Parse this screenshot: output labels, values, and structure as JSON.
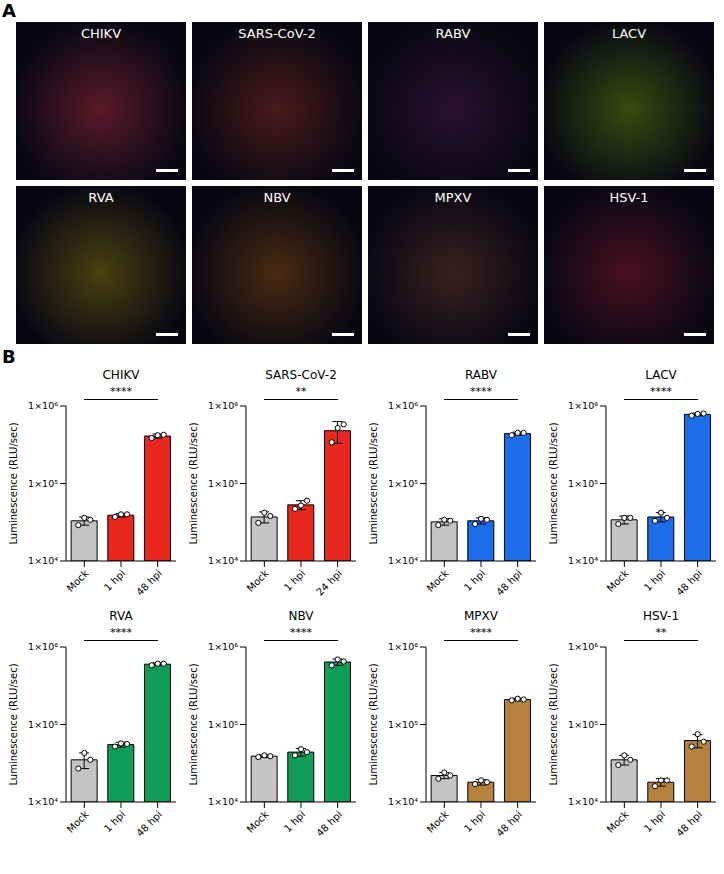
{
  "panel_a": {
    "letter": "A",
    "images": [
      {
        "label": "CHIKV"
      },
      {
        "label": "SARS-CoV-2"
      },
      {
        "label": "RABV"
      },
      {
        "label": "LACV"
      },
      {
        "label": "RVA"
      },
      {
        "label": "NBV"
      },
      {
        "label": "MPXV"
      },
      {
        "label": "HSV-1"
      }
    ]
  },
  "panel_b": {
    "letter": "B"
  },
  "chart_data": [
    {
      "type": "bar",
      "title": "CHIKV",
      "y_label": "Luminescence (RLU/sec)",
      "categories": [
        "Mock",
        "1 hpi",
        "48 hpi"
      ],
      "values": [
        33000,
        39000,
        410000
      ],
      "errors": [
        4000,
        2000,
        25000
      ],
      "points": [
        [
          29000,
          36000,
          34000
        ],
        [
          37000,
          40000,
          40000
        ],
        [
          385000,
          420000,
          425000
        ]
      ],
      "colors": [
        "#c4c4c4",
        "#e8281f",
        "#e8281f"
      ],
      "ylim": [
        10000,
        1000000
      ],
      "yticks": [
        {
          "value": 10000,
          "label": "1×10⁴"
        },
        {
          "value": 100000,
          "label": "1×10⁵"
        },
        {
          "value": 1000000,
          "label": "1×10⁶"
        }
      ],
      "log": "y",
      "annotation": "****"
    },
    {
      "type": "bar",
      "title": "SARS-CoV-2",
      "y_label": "Luminescence (RLU/sec)",
      "categories": [
        "Mock",
        "1 hpi",
        "24 hpi"
      ],
      "values": [
        37000,
        53000,
        480000
      ],
      "errors": [
        6000,
        7000,
        150000
      ],
      "points": [
        [
          31000,
          42000,
          38000
        ],
        [
          47000,
          52000,
          60000
        ],
        [
          340000,
          520000,
          580000
        ]
      ],
      "colors": [
        "#c4c4c4",
        "#e8281f",
        "#e8281f"
      ],
      "ylim": [
        10000,
        1000000
      ],
      "yticks": [
        {
          "value": 10000,
          "label": "1×10⁴"
        },
        {
          "value": 100000,
          "label": "1×10⁵"
        },
        {
          "value": 1000000,
          "label": "1×10⁶"
        }
      ],
      "log": "y",
      "annotation": "**"
    },
    {
      "type": "bar",
      "title": "RABV",
      "y_label": "Luminescence (RLU/sec)",
      "categories": [
        "Mock",
        "1 hpi",
        "48 hpi"
      ],
      "values": [
        32000,
        33000,
        440000
      ],
      "errors": [
        3000,
        3000,
        20000
      ],
      "points": [
        [
          29000,
          34000,
          33000
        ],
        [
          30000,
          35000,
          34000
        ],
        [
          420000,
          450000,
          450000
        ]
      ],
      "colors": [
        "#c4c4c4",
        "#1c6ee8",
        "#1c6ee8"
      ],
      "ylim": [
        10000,
        1000000
      ],
      "yticks": [
        {
          "value": 10000,
          "label": "1×10⁴"
        },
        {
          "value": 100000,
          "label": "1×10⁵"
        },
        {
          "value": 1000000,
          "label": "1×10⁶"
        }
      ],
      "log": "y",
      "annotation": "****"
    },
    {
      "type": "bar",
      "title": "LACV",
      "y_label": "Luminescence (RLU/sec)",
      "categories": [
        "Mock",
        "1 hpi",
        "48 hpi"
      ],
      "values": [
        34000,
        37000,
        780000
      ],
      "errors": [
        4000,
        5000,
        30000
      ],
      "points": [
        [
          30000,
          36000,
          36000
        ],
        [
          33000,
          42000,
          36000
        ],
        [
          750000,
          790000,
          800000
        ]
      ],
      "colors": [
        "#c4c4c4",
        "#1c6ee8",
        "#1c6ee8"
      ],
      "ylim": [
        10000,
        1000000
      ],
      "yticks": [
        {
          "value": 10000,
          "label": "1×10⁴"
        },
        {
          "value": 100000,
          "label": "1×10⁵"
        },
        {
          "value": 1000000,
          "label": "1×10⁶"
        }
      ],
      "log": "y",
      "annotation": "****"
    },
    {
      "type": "bar",
      "title": "RVA",
      "y_label": "Luminescence (RLU/sec)",
      "categories": [
        "Mock",
        "1 hpi",
        "48 hpi"
      ],
      "values": [
        35000,
        55000,
        600000
      ],
      "errors": [
        8000,
        4000,
        25000
      ],
      "points": [
        [
          27000,
          43000,
          35000
        ],
        [
          52000,
          57000,
          56000
        ],
        [
          580000,
          610000,
          610000
        ]
      ],
      "colors": [
        "#c4c4c4",
        "#0f9d58",
        "#0f9d58"
      ],
      "ylim": [
        10000,
        1000000
      ],
      "yticks": [
        {
          "value": 10000,
          "label": "1×10⁴"
        },
        {
          "value": 100000,
          "label": "1×10⁵"
        },
        {
          "value": 1000000,
          "label": "1×10⁶"
        }
      ],
      "log": "y",
      "annotation": "****"
    },
    {
      "type": "bar",
      "title": "NBV",
      "y_label": "Luminescence (RLU/sec)",
      "categories": [
        "Mock",
        "1 hpi",
        "48 hpi"
      ],
      "values": [
        39000,
        44000,
        640000
      ],
      "errors": [
        1500,
        5000,
        60000
      ],
      "points": [
        [
          38000,
          40000,
          39000
        ],
        [
          40000,
          48000,
          44000
        ],
        [
          580000,
          690000,
          650000
        ]
      ],
      "colors": [
        "#c4c4c4",
        "#0f9d58",
        "#0f9d58"
      ],
      "ylim": [
        10000,
        1000000
      ],
      "yticks": [
        {
          "value": 10000,
          "label": "1×10⁴"
        },
        {
          "value": 100000,
          "label": "1×10⁵"
        },
        {
          "value": 1000000,
          "label": "1×10⁶"
        }
      ],
      "log": "y",
      "annotation": "****"
    },
    {
      "type": "bar",
      "title": "MPXV",
      "y_label": "Luminescence (RLU/sec)",
      "categories": [
        "Mock",
        "1 hpi",
        "48 hpi"
      ],
      "values": [
        22000,
        18000,
        210000
      ],
      "errors": [
        2000,
        1500,
        8000
      ],
      "points": [
        [
          20000,
          24000,
          22000
        ],
        [
          17000,
          19000,
          18000
        ],
        [
          205000,
          215000,
          210000
        ]
      ],
      "colors": [
        "#c4c4c4",
        "#b5813f",
        "#b5813f"
      ],
      "ylim": [
        10000,
        1000000
      ],
      "yticks": [
        {
          "value": 10000,
          "label": "1×10⁴"
        },
        {
          "value": 100000,
          "label": "1×10⁵"
        },
        {
          "value": 1000000,
          "label": "1×10⁶"
        }
      ],
      "log": "y",
      "annotation": "****"
    },
    {
      "type": "bar",
      "title": "HSV-1",
      "y_label": "Luminescence (RLU/sec)",
      "categories": [
        "Mock",
        "1 hpi",
        "48 hpi"
      ],
      "values": [
        35000,
        18000,
        62000
      ],
      "errors": [
        5000,
        2000,
        12000
      ],
      "points": [
        [
          30000,
          40000,
          35000
        ],
        [
          16000,
          19000,
          19000
        ],
        [
          52000,
          75000,
          60000
        ]
      ],
      "colors": [
        "#c4c4c4",
        "#b5813f",
        "#b5813f"
      ],
      "ylim": [
        10000,
        1000000
      ],
      "yticks": [
        {
          "value": 10000,
          "label": "1×10⁴"
        },
        {
          "value": 100000,
          "label": "1×10⁵"
        },
        {
          "value": 1000000,
          "label": "1×10⁶"
        }
      ],
      "log": "y",
      "annotation": "**"
    }
  ]
}
